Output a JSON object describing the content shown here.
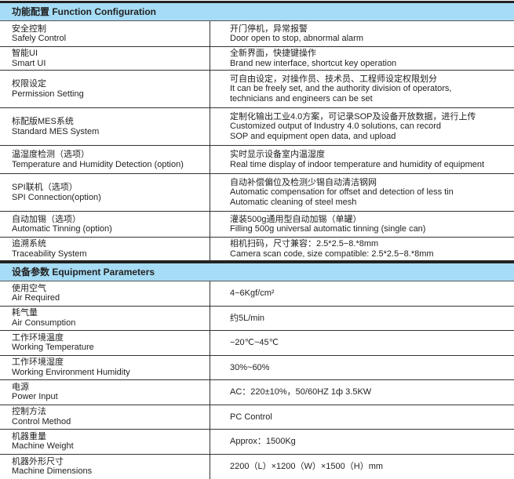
{
  "function_section": {
    "title": "功能配置 Function Configuration",
    "rows": [
      {
        "zh": "安全控制",
        "en": "Safely Control",
        "desc": [
          "开门停机，异常报警",
          "Door open to stop, abnormal alarm"
        ]
      },
      {
        "zh": "智能UI",
        "en": "Smart UI",
        "desc": [
          "全新界面，快捷键操作",
          "Brand new interface, shortcut key operation"
        ]
      },
      {
        "zh": "权限设定",
        "en": "Permission Setting",
        "desc": [
          "可自由设定，对操作员、技术员、工程师设定权限划分",
          "It can be freely set, and the authority division of operators,",
          "technicians and engineers can be set"
        ]
      },
      {
        "zh": "标配版MES系统",
        "en": "Standard MES System",
        "desc": [
          "定制化输出工业4.0方案，可记录SOP及设备开放数据，进行上传",
          "Customized output of Industry 4.0 solutions, can record",
          "SOP and equipment open data, and upload"
        ]
      },
      {
        "zh": "温湿度检测（选项）",
        "en": "Temperature and Humidity Detection (option)",
        "desc": [
          "实时显示设备室内温湿度",
          "Real time display of indoor temperature and humidity of equipment"
        ]
      },
      {
        "zh": "SPI联机（选项）",
        "en": "SPI Connection(option)",
        "desc": [
          "自动补偿偏位及检测少锡自动清洁钢网",
          "Automatic compensation for offset and detection of less tin",
          "Automatic cleaning of steel mesh"
        ]
      },
      {
        "zh": "自动加锡（选项）",
        "en": "Automatic Tinning (option)",
        "desc": [
          "灌装500g通用型自动加锡（单罐）",
          "Filling 500g universal automatic tinning (single can)"
        ]
      },
      {
        "zh": "追溯系统",
        "en": "Traceability System",
        "desc": [
          "相机扫码，尺寸兼容：2.5*2.5−8.*8mm",
          "Camera scan code, size compatible: 2.5*2.5−8.*8mm"
        ]
      }
    ]
  },
  "equipment_section": {
    "title": "设备参数 Equipment Parameters",
    "rows": [
      {
        "zh": "使用空气",
        "en": "Air Required",
        "value": "4−6Kgf/cm²"
      },
      {
        "zh": "耗气量",
        "en": "Air Consumption",
        "value": "约5L/min"
      },
      {
        "zh": "工作环境温度",
        "en": "Working Temperature",
        "value": "−20℃~45℃"
      },
      {
        "zh": "工作环境湿度",
        "en": "Working Environment Humidity",
        "value": "30%~60%"
      },
      {
        "zh": "电源",
        "en": "Power Input",
        "value": "AC：220±10%，50/60HZ 1ф 3.5KW"
      },
      {
        "zh": "控制方法",
        "en": "Control Method",
        "value": "PC Control"
      },
      {
        "zh": "机器重量",
        "en": "Machine Weight",
        "value": "Approx：1500Kg"
      },
      {
        "zh": "机器外形尺寸",
        "en": "Machine Dimensions",
        "value": "2200（L）×1200（W）×1500（H）mm"
      }
    ]
  },
  "colors": {
    "header_bg": "#a6dcf5",
    "border": "#333333"
  }
}
